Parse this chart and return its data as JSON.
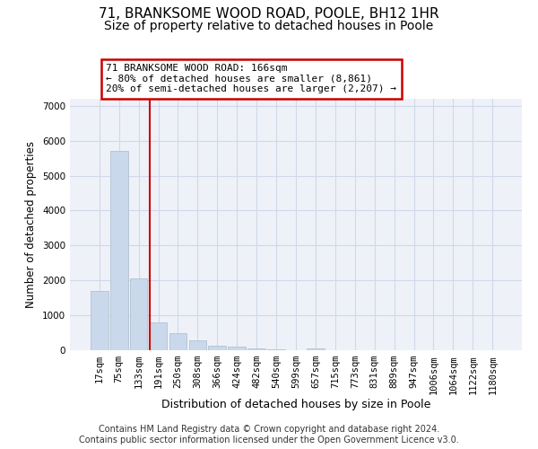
{
  "title1": "71, BRANKSOME WOOD ROAD, POOLE, BH12 1HR",
  "title2": "Size of property relative to detached houses in Poole",
  "xlabel": "Distribution of detached houses by size in Poole",
  "ylabel": "Number of detached properties",
  "bar_labels": [
    "17sqm",
    "75sqm",
    "133sqm",
    "191sqm",
    "250sqm",
    "308sqm",
    "366sqm",
    "424sqm",
    "482sqm",
    "540sqm",
    "599sqm",
    "657sqm",
    "715sqm",
    "773sqm",
    "831sqm",
    "889sqm",
    "947sqm",
    "1006sqm",
    "1064sqm",
    "1122sqm",
    "1180sqm"
  ],
  "bar_values": [
    1700,
    5700,
    2050,
    790,
    490,
    290,
    135,
    95,
    60,
    33,
    0,
    60,
    0,
    0,
    0,
    0,
    0,
    0,
    0,
    0,
    0
  ],
  "bar_color": "#c9d9eb",
  "bar_edge_color": "#aabbcc",
  "grid_color": "#d0d8e8",
  "bg_color": "#eef2f8",
  "annotation_line1": "71 BRANKSOME WOOD ROAD: 166sqm",
  "annotation_line2": "← 80% of detached houses are smaller (8,861)",
  "annotation_line3": "20% of semi-detached houses are larger (2,207) →",
  "vline_color": "#cc0000",
  "ylim_max": 7200,
  "yticks": [
    0,
    1000,
    2000,
    3000,
    4000,
    5000,
    6000,
    7000
  ],
  "footnote": "Contains HM Land Registry data © Crown copyright and database right 2024.\nContains public sector information licensed under the Open Government Licence v3.0.",
  "title1_fontsize": 11,
  "title2_fontsize": 10,
  "annot_fontsize": 8,
  "tick_fontsize": 7.5,
  "ylabel_fontsize": 8.5,
  "xlabel_fontsize": 9,
  "footnote_fontsize": 7
}
